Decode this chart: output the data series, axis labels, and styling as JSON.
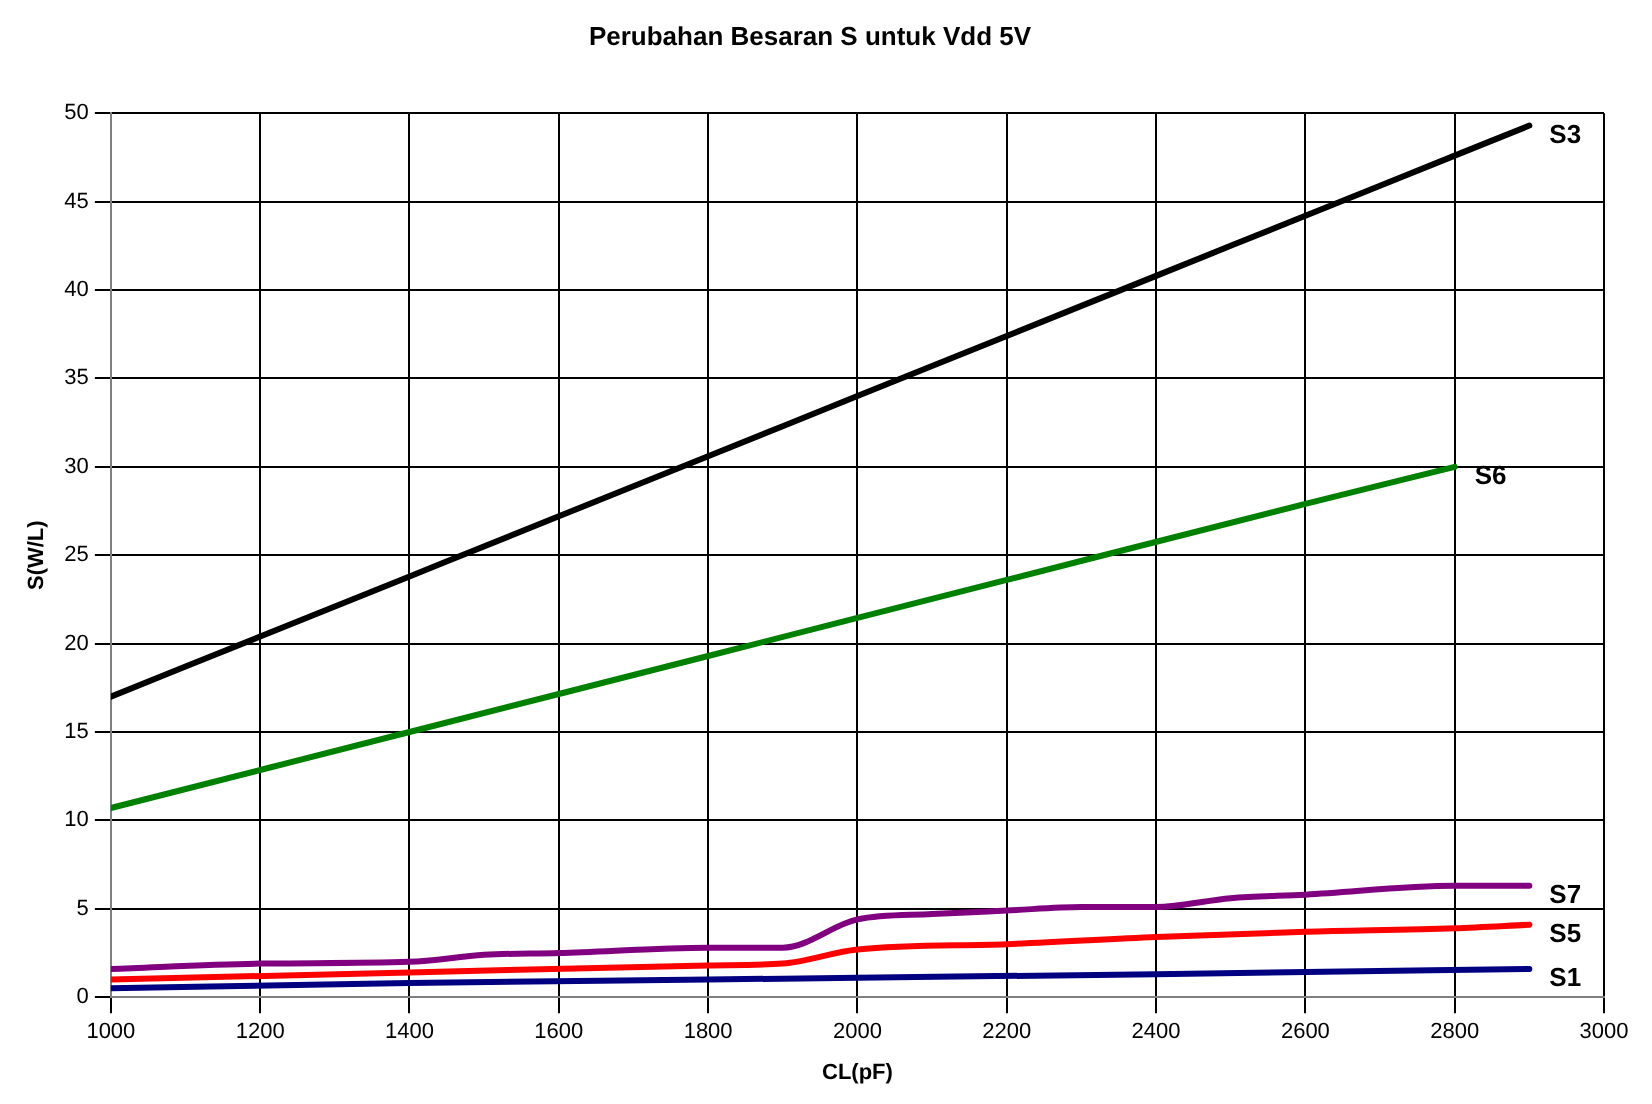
{
  "chart_data": {
    "type": "line",
    "title": "Perubahan Besaran S untuk Vdd 5V",
    "xlabel": "CL(pF)",
    "ylabel": "S(W/L)",
    "xlim": [
      1000,
      3000
    ],
    "xticks": [
      1000,
      1200,
      1400,
      1600,
      1800,
      2000,
      2200,
      2400,
      2600,
      2800,
      3000
    ],
    "ylim": [
      0,
      50
    ],
    "yticks": [
      0,
      5,
      10,
      15,
      20,
      25,
      30,
      35,
      40,
      45,
      50
    ],
    "grid": true,
    "legend": false,
    "marker": "none",
    "line_style": "solid",
    "series": [
      {
        "name": "S3",
        "color": "#000000",
        "x": [
          1000,
          1200,
          1400,
          1600,
          1800,
          2000,
          2200,
          2400,
          2600,
          2800,
          2900
        ],
        "values": [
          17,
          20.4,
          23.8,
          27.2,
          30.6,
          34,
          37.4,
          40.8,
          44.2,
          47.6,
          49.3
        ]
      },
      {
        "name": "S6",
        "color": "#008000",
        "x": [
          1000,
          1400,
          1800,
          2200,
          2600,
          2800
        ],
        "values": [
          10.7,
          15,
          19.3,
          23.6,
          27.9,
          30
        ]
      },
      {
        "name": "S7",
        "color": "#800080",
        "x": [
          1000,
          1200,
          1400,
          1500,
          1600,
          1800,
          1900,
          2000,
          2100,
          2200,
          2300,
          2400,
          2500,
          2600,
          2800,
          2900
        ],
        "values": [
          1.6,
          1.9,
          2.0,
          2.4,
          2.5,
          2.8,
          2.8,
          4.4,
          4.7,
          4.9,
          5.1,
          5.1,
          5.6,
          5.8,
          6.3,
          6.3
        ]
      },
      {
        "name": "S5",
        "color": "#ff0000",
        "x": [
          1000,
          1400,
          1800,
          1900,
          2000,
          2200,
          2400,
          2600,
          2800,
          2900
        ],
        "values": [
          1.0,
          1.4,
          1.8,
          1.9,
          2.7,
          3.0,
          3.4,
          3.7,
          3.9,
          4.1
        ]
      },
      {
        "name": "S1",
        "color": "#000080",
        "x": [
          1000,
          1400,
          1800,
          2000,
          2400,
          2900
        ],
        "values": [
          0.5,
          0.8,
          1.0,
          1.1,
          1.3,
          1.6
        ]
      }
    ]
  }
}
